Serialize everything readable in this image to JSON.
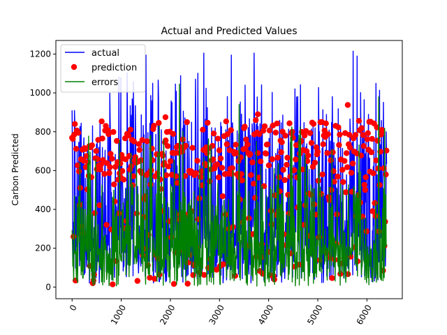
{
  "chart_data": {
    "type": "line",
    "title": "Actual and Predicted Values",
    "xlabel": "",
    "ylabel": "Carbon Predicted",
    "xlim": [
      -330,
      6720
    ],
    "ylim": [
      -60,
      1270
    ],
    "xticks": [
      0,
      1000,
      2000,
      3000,
      4000,
      5000,
      6000
    ],
    "yticks": [
      0,
      200,
      400,
      600,
      800,
      1000,
      1200
    ],
    "x_tick_rotation": 60,
    "grid": false,
    "legend_position": "upper-left",
    "n_points": 6400,
    "series": [
      {
        "name": "actual",
        "kind": "line",
        "color": "#0000ff",
        "x_range": [
          0,
          6400
        ],
        "value_range": [
          0,
          1215
        ],
        "dense_band": [
          0,
          850
        ],
        "peaks": [
          {
            "x": 1500,
            "y": 1195
          },
          {
            "x": 2680,
            "y": 1205
          },
          {
            "x": 3240,
            "y": 1195
          },
          {
            "x": 3700,
            "y": 1205
          },
          {
            "x": 5720,
            "y": 1215
          },
          {
            "x": 5800,
            "y": 1190
          }
        ]
      },
      {
        "name": "prediction",
        "kind": "scatter",
        "color": "#ff0000",
        "x_range": [
          0,
          6400
        ],
        "value_range": [
          0,
          940
        ],
        "dense_band": [
          550,
          870
        ],
        "notable_points": [
          {
            "x": 5610,
            "y": 938
          },
          {
            "x": 1900,
            "y": 875
          },
          {
            "x": 3780,
            "y": 890
          }
        ]
      },
      {
        "name": "errors",
        "kind": "line",
        "color": "#008000",
        "x_range": [
          0,
          6400
        ],
        "value_range": [
          0,
          1050
        ],
        "dense_band": [
          0,
          500
        ],
        "peaks": [
          {
            "x": 2180,
            "y": 1045
          },
          {
            "x": 3400,
            "y": 940
          },
          {
            "x": 6240,
            "y": 980
          }
        ]
      }
    ]
  }
}
